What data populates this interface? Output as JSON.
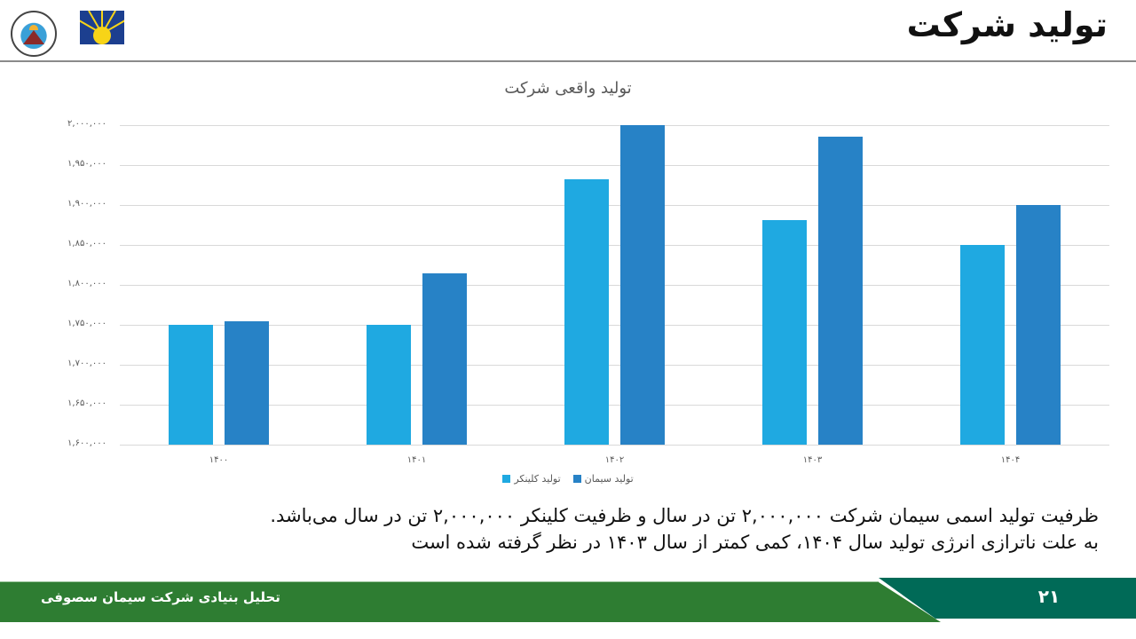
{
  "header": {
    "title": "تولید شرکت",
    "logos": [
      "insurance-logo",
      "exchange-logo"
    ]
  },
  "colors": {
    "clinker": "#1fa9e1",
    "cement": "#2782c6",
    "footer_green": "#2e7d32",
    "footer_teal": "#006a57"
  },
  "chart_data": {
    "type": "bar",
    "title": "تولید واقعی شرکت",
    "categories": [
      "۱۴۰۰",
      "۱۴۰۱",
      "۱۴۰۲",
      "۱۴۰۳",
      "۱۴۰۴"
    ],
    "series": [
      {
        "name": "تولید کلینکر",
        "values": [
          1750000,
          1750000,
          1932000,
          1881000,
          1850000
        ]
      },
      {
        "name": "تولید سیمان",
        "values": [
          1755000,
          1815000,
          2000000,
          1986000,
          1900000
        ]
      }
    ],
    "xlabel": "",
    "ylabel": "",
    "ylim": [
      1600000,
      2000000
    ],
    "yticks": [
      "۲,۰۰۰,۰۰۰",
      "۱,۹۵۰,۰۰۰",
      "۱,۹۰۰,۰۰۰",
      "۱,۸۵۰,۰۰۰",
      "۱,۸۰۰,۰۰۰",
      "۱,۷۵۰,۰۰۰",
      "۱,۷۰۰,۰۰۰",
      "۱,۶۵۰,۰۰۰",
      "۱,۶۰۰,۰۰۰"
    ],
    "grid": true,
    "legend_position": "bottom"
  },
  "body": {
    "line1": "ظرفیت تولید اسمی سیمان شرکت ۲,۰۰۰,۰۰۰ تن در سال و ظرفیت کلینکر ۲,۰۰۰,۰۰۰ تن در سال می‌باشد.",
    "line2": "به علت ناترازی انرژی تولید سال ۱۴۰۴، کمی کمتر از سال ۱۴۰۳ در نظر گرفته شده است"
  },
  "footer": {
    "label": "تحلیل بنیادی شرکت سیمان سصوفی",
    "page_number": "۲۱"
  }
}
